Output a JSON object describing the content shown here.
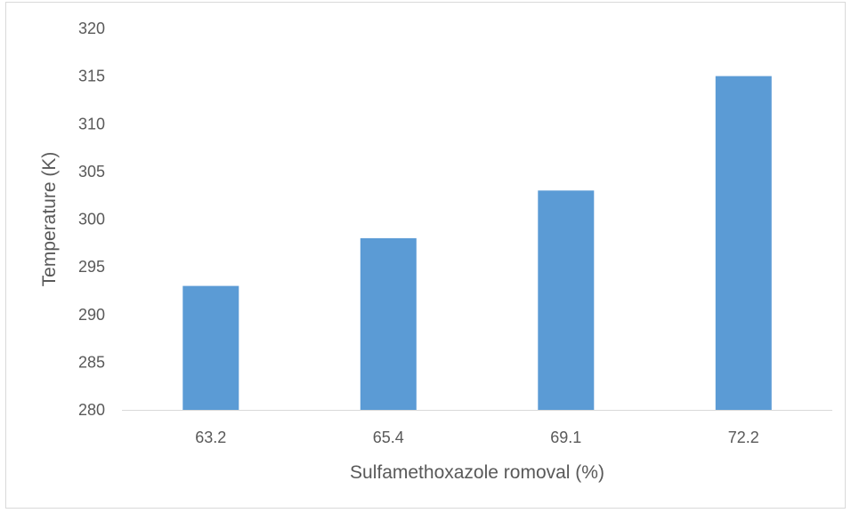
{
  "chart_data": {
    "type": "bar",
    "title": "",
    "xlabel": "Sulfamethoxazole romoval (%)",
    "ylabel": "Temperature (K)",
    "categories": [
      "63.2",
      "65.4",
      "69.1",
      "72.2"
    ],
    "values": [
      293,
      298,
      303,
      315
    ],
    "ylim": [
      280,
      320
    ],
    "yticks": [
      280,
      285,
      290,
      295,
      300,
      305,
      310,
      315,
      320
    ],
    "grid": false,
    "legend": "none",
    "bar_color": "#5b9bd5",
    "axis_color": "#d9d9d9",
    "text_color": "#595959"
  }
}
